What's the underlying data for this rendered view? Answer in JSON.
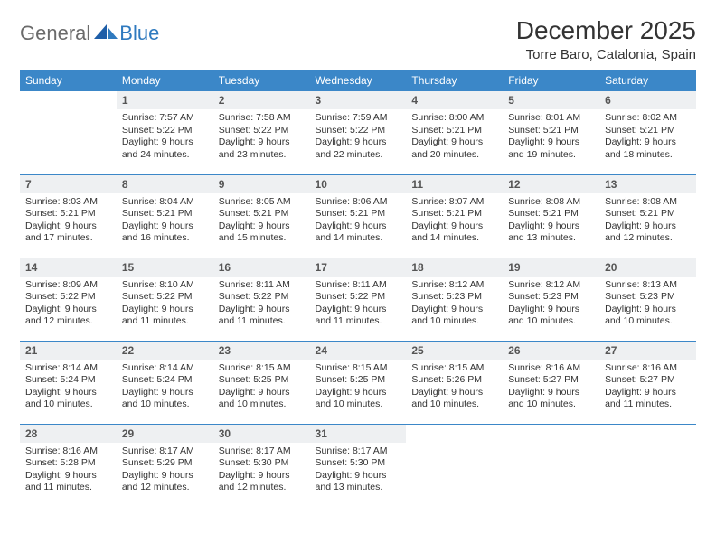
{
  "logo": {
    "part1": "General",
    "part2": "Blue"
  },
  "title": "December 2025",
  "location": "Torre Baro, Catalonia, Spain",
  "colors": {
    "header_bg": "#3b87c8",
    "header_text": "#ffffff",
    "daynum_bg": "#eef0f2",
    "row_divider": "#3b87c8",
    "logo_gray": "#6b6b6b",
    "logo_blue": "#2f7abf",
    "body_text": "#333333"
  },
  "day_headers": [
    "Sunday",
    "Monday",
    "Tuesday",
    "Wednesday",
    "Thursday",
    "Friday",
    "Saturday"
  ],
  "weeks": [
    [
      {
        "n": "",
        "sunrise": "",
        "sunset": "",
        "daylight": ""
      },
      {
        "n": "1",
        "sunrise": "Sunrise: 7:57 AM",
        "sunset": "Sunset: 5:22 PM",
        "daylight": "Daylight: 9 hours and 24 minutes."
      },
      {
        "n": "2",
        "sunrise": "Sunrise: 7:58 AM",
        "sunset": "Sunset: 5:22 PM",
        "daylight": "Daylight: 9 hours and 23 minutes."
      },
      {
        "n": "3",
        "sunrise": "Sunrise: 7:59 AM",
        "sunset": "Sunset: 5:22 PM",
        "daylight": "Daylight: 9 hours and 22 minutes."
      },
      {
        "n": "4",
        "sunrise": "Sunrise: 8:00 AM",
        "sunset": "Sunset: 5:21 PM",
        "daylight": "Daylight: 9 hours and 20 minutes."
      },
      {
        "n": "5",
        "sunrise": "Sunrise: 8:01 AM",
        "sunset": "Sunset: 5:21 PM",
        "daylight": "Daylight: 9 hours and 19 minutes."
      },
      {
        "n": "6",
        "sunrise": "Sunrise: 8:02 AM",
        "sunset": "Sunset: 5:21 PM",
        "daylight": "Daylight: 9 hours and 18 minutes."
      }
    ],
    [
      {
        "n": "7",
        "sunrise": "Sunrise: 8:03 AM",
        "sunset": "Sunset: 5:21 PM",
        "daylight": "Daylight: 9 hours and 17 minutes."
      },
      {
        "n": "8",
        "sunrise": "Sunrise: 8:04 AM",
        "sunset": "Sunset: 5:21 PM",
        "daylight": "Daylight: 9 hours and 16 minutes."
      },
      {
        "n": "9",
        "sunrise": "Sunrise: 8:05 AM",
        "sunset": "Sunset: 5:21 PM",
        "daylight": "Daylight: 9 hours and 15 minutes."
      },
      {
        "n": "10",
        "sunrise": "Sunrise: 8:06 AM",
        "sunset": "Sunset: 5:21 PM",
        "daylight": "Daylight: 9 hours and 14 minutes."
      },
      {
        "n": "11",
        "sunrise": "Sunrise: 8:07 AM",
        "sunset": "Sunset: 5:21 PM",
        "daylight": "Daylight: 9 hours and 14 minutes."
      },
      {
        "n": "12",
        "sunrise": "Sunrise: 8:08 AM",
        "sunset": "Sunset: 5:21 PM",
        "daylight": "Daylight: 9 hours and 13 minutes."
      },
      {
        "n": "13",
        "sunrise": "Sunrise: 8:08 AM",
        "sunset": "Sunset: 5:21 PM",
        "daylight": "Daylight: 9 hours and 12 minutes."
      }
    ],
    [
      {
        "n": "14",
        "sunrise": "Sunrise: 8:09 AM",
        "sunset": "Sunset: 5:22 PM",
        "daylight": "Daylight: 9 hours and 12 minutes."
      },
      {
        "n": "15",
        "sunrise": "Sunrise: 8:10 AM",
        "sunset": "Sunset: 5:22 PM",
        "daylight": "Daylight: 9 hours and 11 minutes."
      },
      {
        "n": "16",
        "sunrise": "Sunrise: 8:11 AM",
        "sunset": "Sunset: 5:22 PM",
        "daylight": "Daylight: 9 hours and 11 minutes."
      },
      {
        "n": "17",
        "sunrise": "Sunrise: 8:11 AM",
        "sunset": "Sunset: 5:22 PM",
        "daylight": "Daylight: 9 hours and 11 minutes."
      },
      {
        "n": "18",
        "sunrise": "Sunrise: 8:12 AM",
        "sunset": "Sunset: 5:23 PM",
        "daylight": "Daylight: 9 hours and 10 minutes."
      },
      {
        "n": "19",
        "sunrise": "Sunrise: 8:12 AM",
        "sunset": "Sunset: 5:23 PM",
        "daylight": "Daylight: 9 hours and 10 minutes."
      },
      {
        "n": "20",
        "sunrise": "Sunrise: 8:13 AM",
        "sunset": "Sunset: 5:23 PM",
        "daylight": "Daylight: 9 hours and 10 minutes."
      }
    ],
    [
      {
        "n": "21",
        "sunrise": "Sunrise: 8:14 AM",
        "sunset": "Sunset: 5:24 PM",
        "daylight": "Daylight: 9 hours and 10 minutes."
      },
      {
        "n": "22",
        "sunrise": "Sunrise: 8:14 AM",
        "sunset": "Sunset: 5:24 PM",
        "daylight": "Daylight: 9 hours and 10 minutes."
      },
      {
        "n": "23",
        "sunrise": "Sunrise: 8:15 AM",
        "sunset": "Sunset: 5:25 PM",
        "daylight": "Daylight: 9 hours and 10 minutes."
      },
      {
        "n": "24",
        "sunrise": "Sunrise: 8:15 AM",
        "sunset": "Sunset: 5:25 PM",
        "daylight": "Daylight: 9 hours and 10 minutes."
      },
      {
        "n": "25",
        "sunrise": "Sunrise: 8:15 AM",
        "sunset": "Sunset: 5:26 PM",
        "daylight": "Daylight: 9 hours and 10 minutes."
      },
      {
        "n": "26",
        "sunrise": "Sunrise: 8:16 AM",
        "sunset": "Sunset: 5:27 PM",
        "daylight": "Daylight: 9 hours and 10 minutes."
      },
      {
        "n": "27",
        "sunrise": "Sunrise: 8:16 AM",
        "sunset": "Sunset: 5:27 PM",
        "daylight": "Daylight: 9 hours and 11 minutes."
      }
    ],
    [
      {
        "n": "28",
        "sunrise": "Sunrise: 8:16 AM",
        "sunset": "Sunset: 5:28 PM",
        "daylight": "Daylight: 9 hours and 11 minutes."
      },
      {
        "n": "29",
        "sunrise": "Sunrise: 8:17 AM",
        "sunset": "Sunset: 5:29 PM",
        "daylight": "Daylight: 9 hours and 12 minutes."
      },
      {
        "n": "30",
        "sunrise": "Sunrise: 8:17 AM",
        "sunset": "Sunset: 5:30 PM",
        "daylight": "Daylight: 9 hours and 12 minutes."
      },
      {
        "n": "31",
        "sunrise": "Sunrise: 8:17 AM",
        "sunset": "Sunset: 5:30 PM",
        "daylight": "Daylight: 9 hours and 13 minutes."
      },
      {
        "n": "",
        "sunrise": "",
        "sunset": "",
        "daylight": ""
      },
      {
        "n": "",
        "sunrise": "",
        "sunset": "",
        "daylight": ""
      },
      {
        "n": "",
        "sunrise": "",
        "sunset": "",
        "daylight": ""
      }
    ]
  ]
}
